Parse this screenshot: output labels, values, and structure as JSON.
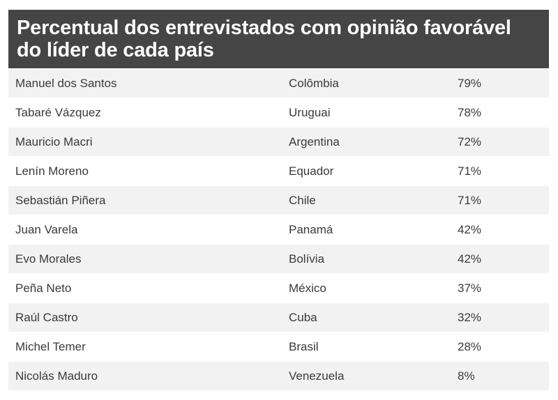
{
  "title": "Percentual dos entrevistados com opinião favorável do líder de cada país",
  "chart_data": {
    "type": "table",
    "title": "Percentual dos entrevistados com opinião favorável do líder de cada país",
    "rows": [
      {
        "leader": "Manuel dos Santos",
        "country": "Colômbia",
        "percent": "79%",
        "value": 79
      },
      {
        "leader": "Tabaré Vázquez",
        "country": "Uruguai",
        "percent": "78%",
        "value": 78
      },
      {
        "leader": "Mauricio Macri",
        "country": "Argentina",
        "percent": "72%",
        "value": 72
      },
      {
        "leader": "Lenín Moreno",
        "country": "Equador",
        "percent": "71%",
        "value": 71
      },
      {
        "leader": "Sebastián Piñera",
        "country": "Chile",
        "percent": "71%",
        "value": 71
      },
      {
        "leader": "Juan Varela",
        "country": "Panamá",
        "percent": "42%",
        "value": 42
      },
      {
        "leader": "Evo Morales",
        "country": "Bolívia",
        "percent": "42%",
        "value": 42
      },
      {
        "leader": "Peña Neto",
        "country": "México",
        "percent": "37%",
        "value": 37
      },
      {
        "leader": "Raúl Castro",
        "country": "Cuba",
        "percent": "32%",
        "value": 32
      },
      {
        "leader": "Michel Temer",
        "country": "Brasil",
        "percent": "28%",
        "value": 28
      },
      {
        "leader": "Nicolás Maduro",
        "country": "Venezuela",
        "percent": "8%",
        "value": 8
      }
    ]
  }
}
